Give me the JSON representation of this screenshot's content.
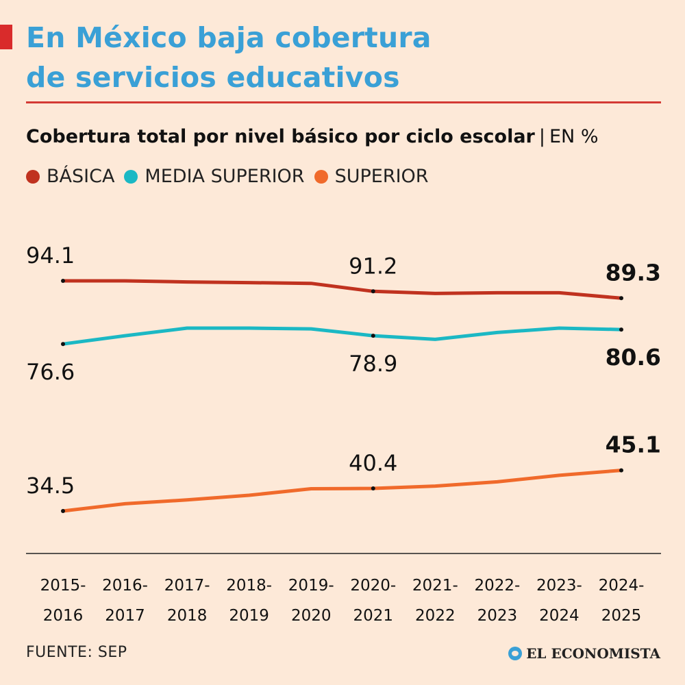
{
  "header": {
    "title_line1": "En México baja cobertura",
    "title_line2": "de servicios educativos",
    "subtitle_bold": "Cobertura total por nivel básico por ciclo escolar",
    "separator": "|",
    "unit": "EN %"
  },
  "colors": {
    "accent": "#d92b2b",
    "title": "#3aa0d6",
    "basica": "#c0321f",
    "media": "#1bb8c4",
    "superior": "#f06a2b",
    "background": "#fde9d8"
  },
  "chart_data": {
    "type": "line",
    "title": "Cobertura total por nivel básico por ciclo escolar",
    "ylabel": "EN %",
    "xlabel": "",
    "grid": false,
    "legend": "top-left",
    "ylim": [
      30,
      96
    ],
    "categories": [
      [
        "2015-",
        "2016"
      ],
      [
        "2016-",
        "2017"
      ],
      [
        "2017-",
        "2018"
      ],
      [
        "2018-",
        "2019"
      ],
      [
        "2019-",
        "2020"
      ],
      [
        "2020-",
        "2021"
      ],
      [
        "2021-",
        "2022"
      ],
      [
        "2022-",
        "2023"
      ],
      [
        "2023-",
        "2024"
      ],
      [
        "2024-",
        "2025"
      ]
    ],
    "series": [
      {
        "name": "BÁSICA",
        "key": "basica",
        "values": [
          94.1,
          94.1,
          93.8,
          93.6,
          93.4,
          91.2,
          90.6,
          90.8,
          90.8,
          89.3
        ],
        "labels": [
          {
            "index": 0,
            "text": "94.1",
            "pos": "above",
            "bold": false
          },
          {
            "index": 5,
            "text": "91.2",
            "pos": "above",
            "bold": false
          },
          {
            "index": 9,
            "text": "89.3",
            "pos": "above",
            "bold": true
          }
        ]
      },
      {
        "name": "MEDIA SUPERIOR",
        "key": "media",
        "values": [
          76.6,
          78.9,
          81.0,
          81.0,
          80.8,
          78.9,
          77.9,
          79.8,
          81.0,
          80.6
        ],
        "labels": [
          {
            "index": 0,
            "text": "76.6",
            "pos": "below",
            "bold": false
          },
          {
            "index": 5,
            "text": "78.9",
            "pos": "below",
            "bold": false
          },
          {
            "index": 9,
            "text": "80.6",
            "pos": "below",
            "bold": true
          }
        ]
      },
      {
        "name": "SUPERIOR",
        "key": "superior",
        "values": [
          34.5,
          36.4,
          37.4,
          38.6,
          40.3,
          40.4,
          41.0,
          42.1,
          43.8,
          45.1
        ],
        "labels": [
          {
            "index": 0,
            "text": "34.5",
            "pos": "above",
            "bold": false
          },
          {
            "index": 5,
            "text": "40.4",
            "pos": "above",
            "bold": false
          },
          {
            "index": 9,
            "text": "45.1",
            "pos": "above",
            "bold": true
          }
        ]
      }
    ]
  },
  "legend": [
    {
      "label": "BÁSICA",
      "color": "#c0321f"
    },
    {
      "label": "MEDIA SUPERIOR",
      "color": "#1bb8c4"
    },
    {
      "label": "SUPERIOR",
      "color": "#f06a2b"
    }
  ],
  "footer": {
    "source": "FUENTE: SEP",
    "brand": "EL ECONOMISTA"
  }
}
